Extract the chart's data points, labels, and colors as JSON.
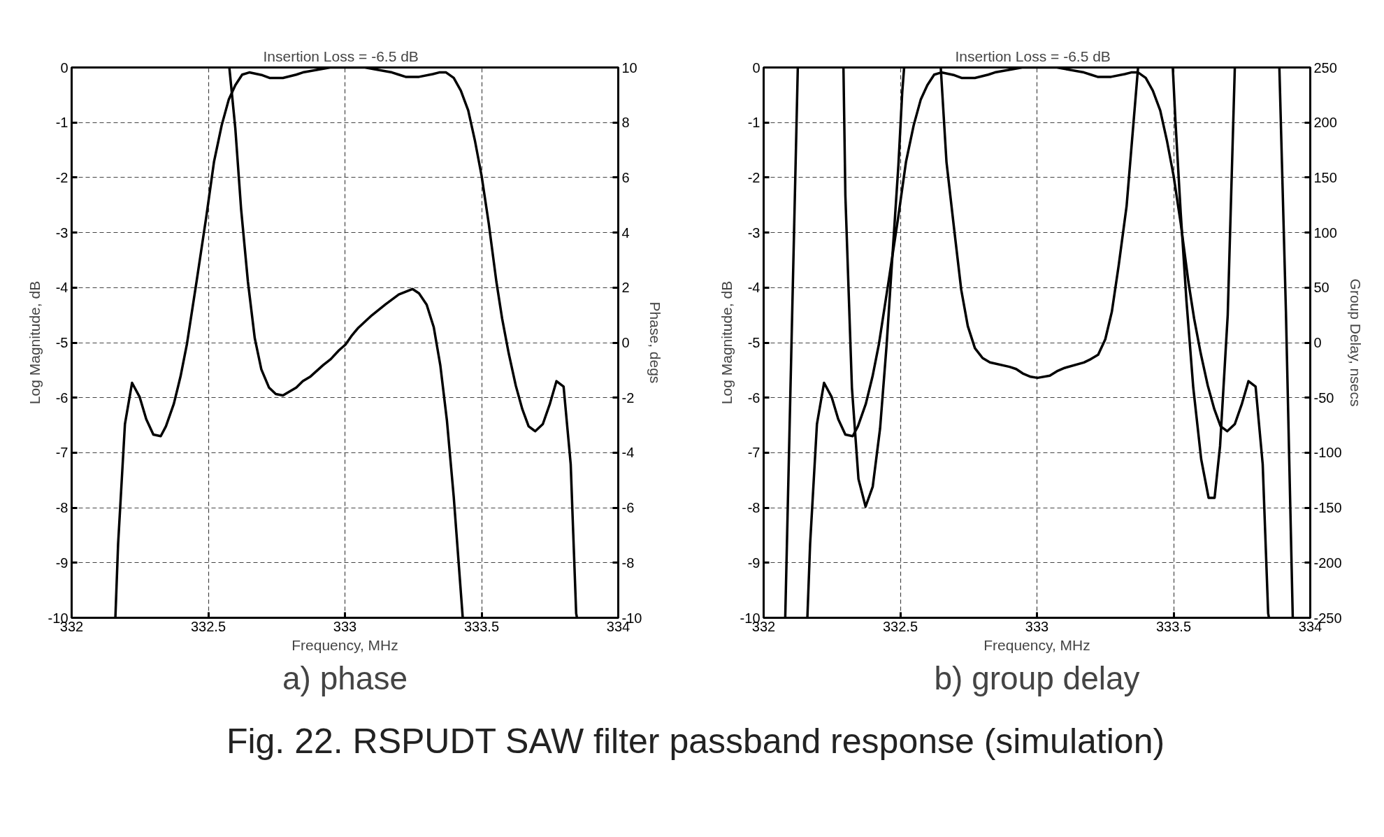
{
  "chart_data": [
    {
      "type": "line",
      "title": "Insertion Loss =   -6.5 dB",
      "xlabel": "Frequency, MHz",
      "ylabel": "Log Magnitude, dB",
      "y2label": "Phase, degs",
      "annotations": [
        "a) phase"
      ],
      "xlim": [
        332,
        334
      ],
      "xticks": [
        332,
        332.5,
        333,
        333.5,
        334
      ],
      "ylim": [
        -10,
        0
      ],
      "yticks": [
        -10,
        -9,
        -8,
        -7,
        -6,
        -5,
        -4,
        -3,
        -2,
        -1,
        0
      ],
      "y2lim": [
        -10,
        10
      ],
      "y2ticks": [
        -10,
        -8,
        -6,
        -4,
        -2,
        0,
        2,
        4,
        6,
        8,
        10
      ],
      "grid": true,
      "line_style": "solid",
      "series": [
        {
          "color": "#000000",
          "x": [
            332.16,
            332.17,
            332.195,
            332.221,
            332.249,
            332.273,
            332.299,
            332.326,
            332.345,
            332.374,
            332.399,
            332.422,
            332.457,
            332.493,
            332.521,
            332.549,
            332.575,
            332.599,
            332.624,
            332.65,
            332.698,
            332.724,
            332.773,
            332.822,
            332.846,
            332.946,
            333.073,
            333.172,
            333.197,
            333.222,
            333.271,
            333.321,
            333.345,
            333.37,
            333.398,
            333.424,
            333.451,
            333.476,
            333.5,
            333.526,
            333.554,
            333.575,
            333.599,
            333.625,
            333.649,
            333.672,
            333.696,
            333.724,
            333.75,
            333.774,
            333.8,
            333.826,
            333.846,
            333.849
          ],
          "values": [
            -10,
            -8.66,
            -6.48,
            -5.73,
            -5.99,
            -6.39,
            -6.67,
            -6.7,
            -6.52,
            -6.11,
            -5.6,
            -5.02,
            -3.89,
            -2.7,
            -1.71,
            -1.05,
            -0.58,
            -0.32,
            -0.13,
            -0.09,
            -0.14,
            -0.19,
            -0.19,
            -0.13,
            -0.09,
            0,
            0,
            -0.09,
            -0.13,
            -0.17,
            -0.17,
            -0.12,
            -0.09,
            -0.09,
            -0.19,
            -0.42,
            -0.78,
            -1.34,
            -1.97,
            -2.83,
            -3.89,
            -4.56,
            -5.19,
            -5.78,
            -6.21,
            -6.52,
            -6.61,
            -6.48,
            -6.11,
            -5.7,
            -5.8,
            -7.21,
            -9.92,
            -10
          ]
        },
        {
          "color": "#000000",
          "axis": "y2",
          "x": [
            332.577,
            332.599,
            332.62,
            332.645,
            332.67,
            332.694,
            332.722,
            332.747,
            332.773,
            332.822,
            332.846,
            332.874,
            332.921,
            332.948,
            332.978,
            333.002,
            333.023,
            333.047,
            333.098,
            333.148,
            333.197,
            333.247,
            333.271,
            333.299,
            333.325,
            333.349,
            333.373,
            333.398,
            333.431
          ],
          "values": [
            10,
            7.77,
            4.86,
            2.21,
            0.16,
            -0.97,
            -1.63,
            -1.87,
            -1.92,
            -1.63,
            -1.4,
            -1.23,
            -0.81,
            -0.6,
            -0.28,
            -0.07,
            0.23,
            0.52,
            0.99,
            1.39,
            1.75,
            1.95,
            1.79,
            1.38,
            0.56,
            -0.83,
            -2.82,
            -5.6,
            -10
          ]
        }
      ]
    },
    {
      "type": "line",
      "title": "Insertion Loss =   -6.5 dB",
      "xlabel": "Frequency, MHz",
      "ylabel": "Log Magnitude, dB",
      "y2label": "Group Delay, nsecs",
      "annotations": [
        "b) group delay"
      ],
      "xlim": [
        332,
        334
      ],
      "xticks": [
        332,
        332.5,
        333,
        333.5,
        334
      ],
      "ylim": [
        -10,
        0
      ],
      "yticks": [
        -10,
        -9,
        -8,
        -7,
        -6,
        -5,
        -4,
        -3,
        -2,
        -1,
        0
      ],
      "y2lim": [
        -250,
        250
      ],
      "y2ticks": [
        -250,
        -200,
        -150,
        -100,
        -50,
        0,
        50,
        100,
        150,
        200,
        250
      ],
      "grid": true,
      "line_style": "solid",
      "series": [
        {
          "color": "#000000",
          "x": [
            332.16,
            332.17,
            332.195,
            332.221,
            332.249,
            332.273,
            332.299,
            332.326,
            332.345,
            332.374,
            332.399,
            332.422,
            332.457,
            332.493,
            332.521,
            332.549,
            332.575,
            332.599,
            332.624,
            332.65,
            332.698,
            332.724,
            332.773,
            332.822,
            332.846,
            332.946,
            333.073,
            333.172,
            333.197,
            333.222,
            333.271,
            333.321,
            333.345,
            333.37,
            333.398,
            333.424,
            333.451,
            333.476,
            333.5,
            333.526,
            333.554,
            333.575,
            333.599,
            333.625,
            333.649,
            333.672,
            333.696,
            333.724,
            333.75,
            333.774,
            333.8,
            333.826,
            333.846,
            333.849
          ],
          "values": [
            -10,
            -8.66,
            -6.48,
            -5.73,
            -5.99,
            -6.39,
            -6.67,
            -6.7,
            -6.52,
            -6.11,
            -5.6,
            -5.02,
            -3.89,
            -2.7,
            -1.71,
            -1.05,
            -0.58,
            -0.32,
            -0.13,
            -0.09,
            -0.14,
            -0.19,
            -0.19,
            -0.13,
            -0.09,
            0,
            0,
            -0.09,
            -0.13,
            -0.17,
            -0.17,
            -0.12,
            -0.09,
            -0.09,
            -0.19,
            -0.42,
            -0.78,
            -1.34,
            -1.97,
            -2.83,
            -3.89,
            -4.56,
            -5.19,
            -5.78,
            -6.21,
            -6.52,
            -6.61,
            -6.48,
            -6.11,
            -5.7,
            -5.8,
            -7.21,
            -9.92,
            -10
          ]
        },
        {
          "color": "#000000",
          "axis": "y2",
          "x": [
            332.079,
            332.125,
            332.2,
            332.292,
            332.299,
            332.309,
            332.323,
            332.347,
            332.373,
            332.399,
            332.426,
            332.45,
            332.471,
            332.493,
            332.507,
            332.514,
            332.58,
            332.648,
            332.669,
            332.698,
            332.723,
            332.747,
            332.773,
            332.801,
            332.828,
            332.9,
            332.924,
            332.948,
            332.977,
            333.002,
            333.047,
            333.073,
            333.101,
            333.172,
            333.197,
            333.224,
            333.25,
            333.274,
            333.299,
            333.328,
            333.37,
            333.43,
            333.497,
            333.507,
            333.526,
            333.547,
            333.572,
            333.601,
            333.628,
            333.65,
            333.67,
            333.698,
            333.724,
            333.8,
            333.887,
            333.911,
            333.936
          ],
          "values": [
            -250,
            250,
            null,
            250,
            134,
            61,
            -41,
            -124,
            -149,
            -131,
            -78,
            -2,
            78,
            161,
            227,
            250,
            null,
            250,
            164,
            101,
            48,
            15,
            -5,
            -14,
            -18,
            -22,
            -24,
            -28,
            -31,
            -32,
            -30,
            -26,
            -23,
            -18,
            -15,
            -11,
            3,
            28,
            70,
            124,
            250,
            null,
            250,
            200,
            118,
            38,
            -41,
            -106,
            -141,
            -141,
            -94,
            25,
            250,
            null,
            250,
            28,
            -250
          ]
        }
      ]
    },
    {
      "type": "other",
      "title": "Fig. 22. RSPUDT SAW filter passband response (simulation)"
    }
  ]
}
